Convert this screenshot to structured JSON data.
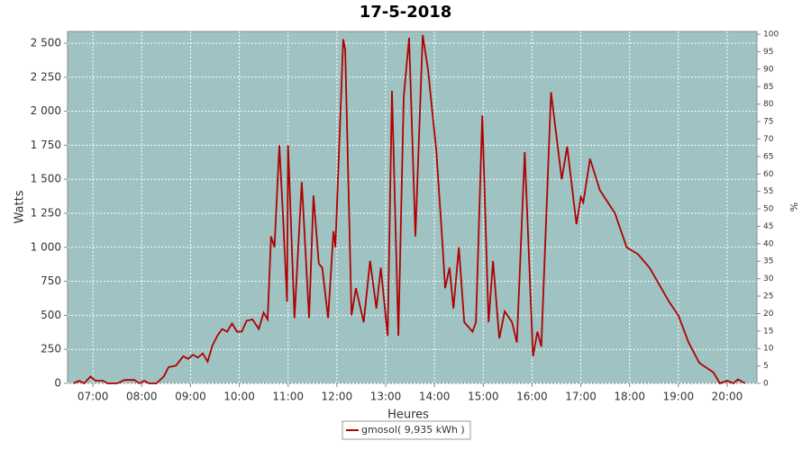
{
  "chart_data": {
    "type": "line",
    "title": "17-5-2018",
    "x_label": "Heures",
    "y_label": "Watts",
    "y2_label": "%",
    "xlim": [
      6.48,
      20.61
    ],
    "xticks": [
      {
        "value": 7,
        "label": "07:00"
      },
      {
        "value": 8,
        "label": "08:00"
      },
      {
        "value": 9,
        "label": "09:00"
      },
      {
        "value": 10,
        "label": "10:00"
      },
      {
        "value": 11,
        "label": "11:00"
      },
      {
        "value": 12,
        "label": "12:00"
      },
      {
        "value": 13,
        "label": "13:00"
      },
      {
        "value": 14,
        "label": "14:00"
      },
      {
        "value": 15,
        "label": "15:00"
      },
      {
        "value": 16,
        "label": "16:00"
      },
      {
        "value": 17,
        "label": "17:00"
      },
      {
        "value": 18,
        "label": "18:00"
      },
      {
        "value": 19,
        "label": "19:00"
      },
      {
        "value": 20,
        "label": "20:00"
      }
    ],
    "ylim": [
      0,
      2586
    ],
    "yticks": [
      0,
      250,
      500,
      750,
      {
        "value": 1000,
        "label": "1 000"
      },
      {
        "value": 1250,
        "label": "1 250"
      },
      {
        "value": 1500,
        "label": "1 500"
      },
      {
        "value": 1750,
        "label": "1 750"
      },
      {
        "value": 2000,
        "label": "2 000"
      },
      {
        "value": 2250,
        "label": "2 250"
      },
      {
        "value": 2500,
        "label": "2 500"
      }
    ],
    "y2lim": [
      0,
      100.8
    ],
    "y2ticks": [
      0,
      5,
      10,
      15,
      20,
      25,
      30,
      35,
      40,
      45,
      50,
      55,
      60,
      65,
      70,
      75,
      80,
      85,
      90,
      95,
      100
    ],
    "grid": true,
    "plot_background": "#9fc3c3",
    "x": [
      6.6,
      6.72,
      6.82,
      6.95,
      7.05,
      7.2,
      7.3,
      7.5,
      7.65,
      7.85,
      7.95,
      8.05,
      8.15,
      8.3,
      8.45,
      8.55,
      8.7,
      8.85,
      8.95,
      9.05,
      9.15,
      9.25,
      9.35,
      9.45,
      9.55,
      9.65,
      9.75,
      9.85,
      9.95,
      10.05,
      10.15,
      10.27,
      10.4,
      10.5,
      10.58,
      10.65,
      10.72,
      10.82,
      10.9,
      10.98,
      11.0,
      11.13,
      11.28,
      11.43,
      11.52,
      11.63,
      11.7,
      11.82,
      11.93,
      11.97,
      12.13,
      12.17,
      12.3,
      12.39,
      12.55,
      12.68,
      12.81,
      12.9,
      13.04,
      13.13,
      13.26,
      13.37,
      13.48,
      13.61,
      13.76,
      13.87,
      14.04,
      14.17,
      14.22,
      14.31,
      14.39,
      14.5,
      14.61,
      14.78,
      14.85,
      14.98,
      15.11,
      15.2,
      15.33,
      15.44,
      15.59,
      15.69,
      15.85,
      16.02,
      16.11,
      16.19,
      16.39,
      16.61,
      16.72,
      16.91,
      17.0,
      17.05,
      17.19,
      17.39,
      17.7,
      17.94,
      18.17,
      18.41,
      18.81,
      19.0,
      19.21,
      19.43,
      19.72,
      19.85,
      20.0,
      20.13,
      20.22,
      20.37
    ],
    "series": [
      {
        "name": "gmosol( 9,935 kWh )",
        "color": "#b00000",
        "values": [
          0,
          20,
          0,
          50,
          20,
          20,
          0,
          0,
          25,
          25,
          0,
          20,
          0,
          0,
          50,
          120,
          130,
          200,
          180,
          210,
          190,
          220,
          160,
          280,
          350,
          400,
          380,
          440,
          380,
          380,
          460,
          470,
          400,
          520,
          470,
          1080,
          1000,
          1750,
          1200,
          600,
          1750,
          480,
          1480,
          480,
          1380,
          880,
          850,
          480,
          1120,
          1000,
          2530,
          2450,
          500,
          700,
          450,
          900,
          550,
          850,
          350,
          2150,
          350,
          2100,
          2540,
          1080,
          2560,
          2300,
          1700,
          1000,
          700,
          850,
          550,
          1000,
          450,
          380,
          450,
          1970,
          450,
          900,
          330,
          530,
          450,
          300,
          1700,
          200,
          380,
          270,
          2140,
          1500,
          1740,
          1170,
          1370,
          1330,
          1650,
          1420,
          1250,
          1000,
          950,
          850,
          600,
          500,
          300,
          150,
          80,
          0,
          20,
          0,
          30,
          0
        ]
      }
    ]
  }
}
